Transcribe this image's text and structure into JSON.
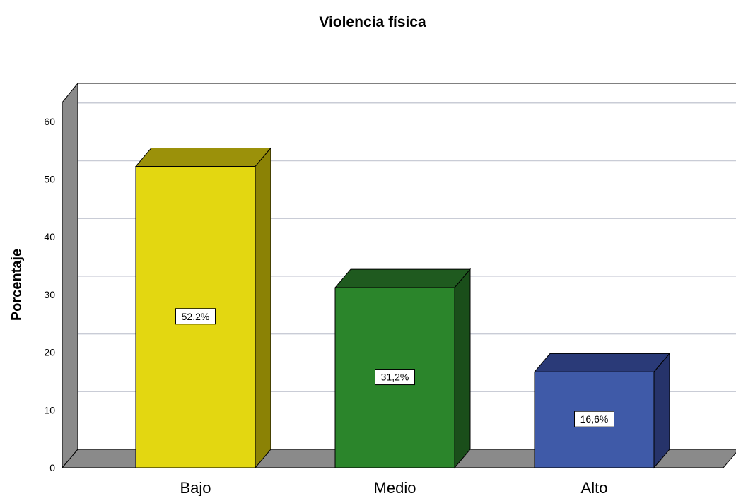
{
  "chart_data": {
    "type": "bar",
    "title": "Violencia física",
    "xlabel": "",
    "ylabel": "Porcentaje",
    "categories": [
      "Bajo",
      "Medio",
      "Alto"
    ],
    "values": [
      52.2,
      31.2,
      16.6
    ],
    "data_labels": [
      "52,2%",
      "31,2%",
      "16,6%"
    ],
    "ylim": [
      0,
      60
    ],
    "yticks": [
      0,
      10,
      20,
      30,
      40,
      50,
      60
    ],
    "grid": true,
    "style": "3d",
    "colors": [
      {
        "face": "#e3d711",
        "side": "#8b8205",
        "top": "#9b910a"
      },
      {
        "face": "#2b852b",
        "side": "#1a4e1a",
        "top": "#1f5a1f"
      },
      {
        "face": "#3f5aa8",
        "side": "#26336a",
        "top": "#2a3a78"
      }
    ],
    "wall_color": "#ffffff",
    "floor_color": "#8a8a8a",
    "grid_color": "#c9ccd6"
  }
}
